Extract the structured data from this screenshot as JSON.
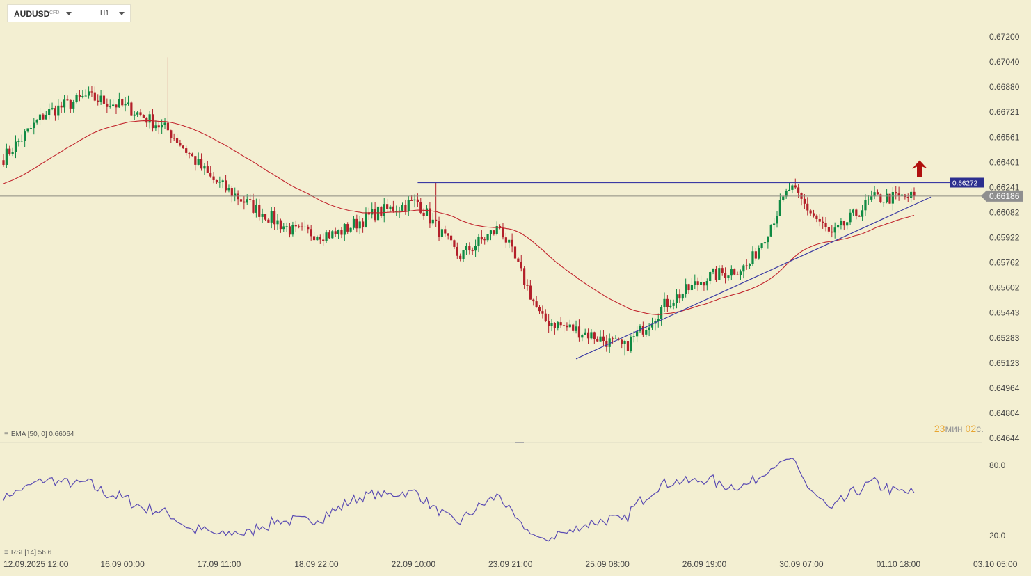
{
  "toolbar": {
    "symbol": "AUDUSD",
    "symbol_tag": "CFD",
    "timeframe": "H1"
  },
  "price_axis": {
    "ticks": [
      "0.67200",
      "0.67040",
      "0.66880",
      "0.66721",
      "0.66561",
      "0.66401",
      "0.66241",
      "0.66082",
      "0.65922",
      "0.65762",
      "0.65602",
      "0.65443",
      "0.65283",
      "0.65123",
      "0.64964",
      "0.64804",
      "0.64644"
    ],
    "ymin": 0.64644,
    "ymax": 0.672,
    "resistance_label": "0.66272",
    "current_label": "0.66186"
  },
  "rsi_axis": {
    "ticks": [
      "80.0",
      "20.0"
    ]
  },
  "time_axis": [
    "12.09.2025  12:00",
    "16.09  00:00",
    "17.09  11:00",
    "18.09  22:00",
    "22.09  10:00",
    "23.09  21:00",
    "25.09  08:00",
    "26.09  19:00",
    "30.09  07:00",
    "01.10  18:00",
    "03.10  05:00"
  ],
  "indicators": {
    "ema_legend": "EMA  [50, 0]  0.66064",
    "rsi_legend": "RSI  [14]  56.6"
  },
  "countdown": {
    "min_value": "23",
    "min_unit": "мин",
    "sec_value": "02",
    "sec_unit": "с."
  },
  "colors": {
    "bg": "#f3efd2",
    "bull": "#0f8a43",
    "bear": "#b3202a",
    "ema": "#c2262e",
    "trend": "#3a3aa3",
    "rsi": "#5a4bb3",
    "badge": "#2c2f8f",
    "arrow": "#b0100e"
  },
  "chart_data": {
    "type": "candlestick",
    "symbol": "AUDUSD",
    "timeframe": "H1",
    "keyframes_close": [
      [
        "12.09.2025 12:00",
        0.6643
      ],
      [
        "16.09 00:00",
        0.6671
      ],
      [
        "16.09 10:00",
        0.6682
      ],
      [
        "17.09 00:00",
        0.6675
      ],
      [
        "17.09 11:00",
        0.666
      ],
      [
        "17.09 18:00",
        0.663
      ],
      [
        "18.09 06:00",
        0.6612
      ],
      [
        "18.09 22:00",
        0.6596
      ],
      [
        "22.09 10:00",
        0.6594
      ],
      [
        "23.09 06:00",
        0.6608
      ],
      [
        "23.09 21:00",
        0.6615
      ],
      [
        "24.09 12:00",
        0.658
      ],
      [
        "25.09 04:00",
        0.6599
      ],
      [
        "25.09 12:00",
        0.654
      ],
      [
        "25.09 22:00",
        0.6532
      ],
      [
        "26.09 06:00",
        0.6522
      ],
      [
        "26.09 19:00",
        0.655
      ],
      [
        "29.09 10:00",
        0.6567
      ],
      [
        "29.09 22:00",
        0.6574
      ],
      [
        "30.09 07:00",
        0.6624
      ],
      [
        "30.09 22:00",
        0.6593
      ],
      [
        "01.10 08:00",
        0.6617
      ],
      [
        "01.10 18:00",
        0.6618
      ]
    ],
    "high_max": 0.6707,
    "low_min": 0.6517,
    "ema50_last": 0.66064,
    "rsi14_last": 56.6,
    "resistance": 0.66272,
    "last_price": 0.66186,
    "signal": "up-arrow"
  }
}
